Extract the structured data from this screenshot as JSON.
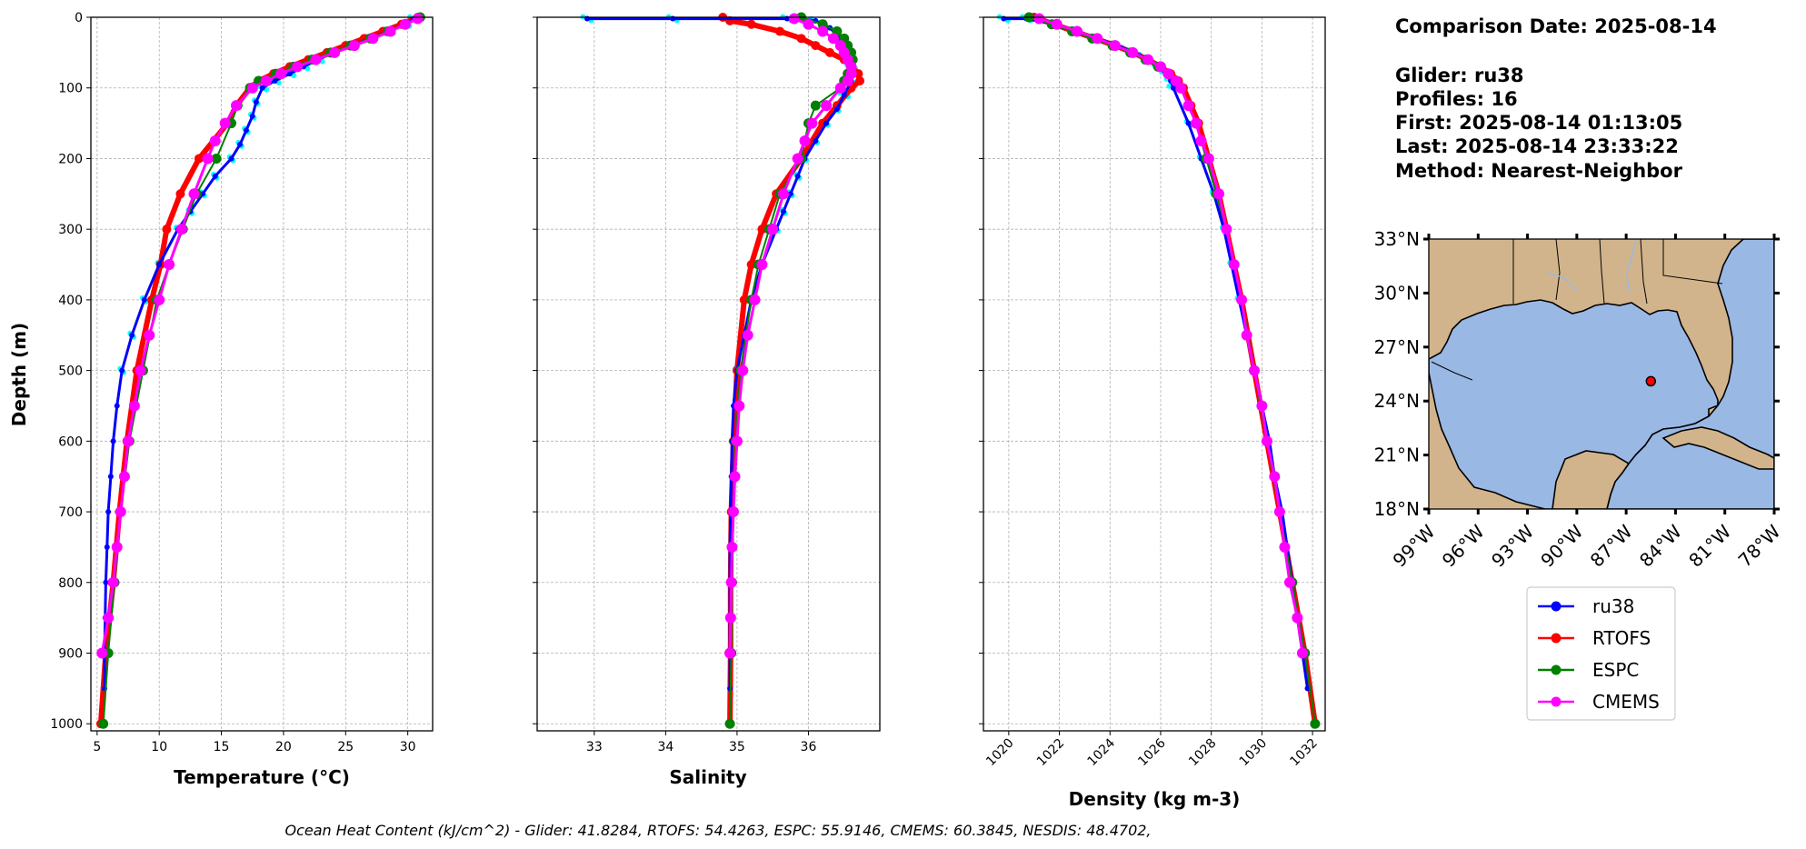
{
  "colors": {
    "glider": "#0000ff",
    "glider_raw": "#00ffff",
    "rtofs": "#ff0000",
    "espc": "#008000",
    "cmems": "#ff00ff",
    "land": "#d2b48c",
    "ocean": "#9ab8e4",
    "grid": "#b0b0b0"
  },
  "chart_data": [
    {
      "type": "line",
      "id": "temperature",
      "xlabel": "Temperature (°C)",
      "ylabel": "Depth (m)",
      "xlim": [
        4.5,
        32.0
      ],
      "ylim": [
        1010,
        0
      ],
      "xticks": [
        5,
        10,
        15,
        20,
        25,
        30
      ],
      "yticks": [
        0,
        100,
        200,
        300,
        400,
        500,
        600,
        700,
        800,
        900,
        1000
      ],
      "grid": true,
      "series": [
        {
          "name": "ru38",
          "depth": [
            2,
            10,
            20,
            30,
            40,
            50,
            60,
            70,
            80,
            90,
            100,
            120,
            140,
            160,
            180,
            200,
            225,
            250,
            275,
            300,
            350,
            400,
            450,
            500,
            550,
            600,
            650,
            700,
            750,
            800,
            850,
            900,
            950
          ],
          "values": [
            30.5,
            29.8,
            28.5,
            27.0,
            25.5,
            24.0,
            22.8,
            21.6,
            20.5,
            19.3,
            18.3,
            17.8,
            17.5,
            17.0,
            16.5,
            15.8,
            14.5,
            13.5,
            12.5,
            11.5,
            10.0,
            8.8,
            7.8,
            7.0,
            6.6,
            6.3,
            6.1,
            5.9,
            5.8,
            5.7,
            5.65,
            5.6,
            5.6
          ]
        },
        {
          "name": "RTOFS",
          "depth": [
            0,
            10,
            20,
            30,
            40,
            50,
            60,
            70,
            80,
            90,
            100,
            125,
            150,
            200,
            250,
            300,
            350,
            400,
            500,
            600,
            700,
            800,
            900,
            1000
          ],
          "values": [
            30.8,
            29.5,
            28.0,
            26.5,
            25.0,
            23.5,
            22.0,
            20.5,
            19.2,
            18.0,
            17.3,
            16.2,
            15.5,
            13.2,
            11.7,
            10.6,
            10.1,
            9.4,
            8.2,
            7.4,
            6.8,
            6.3,
            5.7,
            5.3
          ]
        },
        {
          "name": "ESPC",
          "depth": [
            0,
            10,
            20,
            30,
            40,
            50,
            60,
            70,
            80,
            90,
            100,
            125,
            150,
            200,
            250,
            300,
            350,
            400,
            500,
            600,
            700,
            800,
            900,
            1000
          ],
          "values": [
            31.0,
            29.8,
            28.4,
            27.0,
            25.4,
            23.8,
            22.3,
            20.8,
            19.4,
            18.0,
            17.3,
            16.3,
            15.8,
            14.6,
            13.0,
            11.9,
            10.8,
            9.8,
            8.7,
            7.6,
            6.9,
            6.4,
            5.9,
            5.5
          ]
        },
        {
          "name": "CMEMS",
          "depth": [
            2,
            10,
            20,
            30,
            40,
            50,
            60,
            70,
            80,
            90,
            100,
            125,
            150,
            175,
            200,
            250,
            300,
            350,
            400,
            450,
            500,
            550,
            600,
            650,
            700,
            750,
            800,
            850,
            900
          ],
          "values": [
            30.8,
            29.8,
            28.6,
            27.2,
            25.7,
            24.1,
            22.6,
            21.1,
            19.8,
            18.6,
            17.5,
            16.2,
            15.3,
            14.5,
            13.9,
            12.8,
            11.8,
            10.8,
            10.0,
            9.2,
            8.5,
            8.0,
            7.5,
            7.2,
            6.9,
            6.6,
            6.3,
            5.9,
            5.4
          ]
        }
      ]
    },
    {
      "type": "line",
      "id": "salinity",
      "xlabel": "Salinity",
      "ylabel": "",
      "xlim": [
        32.2,
        37.0
      ],
      "ylim": [
        1010,
        0
      ],
      "xticks": [
        33,
        34,
        35,
        36
      ],
      "yticks": [
        0,
        100,
        200,
        300,
        400,
        500,
        600,
        700,
        800,
        900,
        1000
      ],
      "grid": true,
      "series": [
        {
          "name": "ru38",
          "depth": [
            2,
            2,
            2,
            2,
            5,
            15,
            30,
            50,
            70,
            90,
            110,
            130,
            150,
            175,
            200,
            225,
            250,
            275,
            300,
            350,
            400,
            450,
            500,
            550,
            600,
            650,
            700,
            750,
            800,
            850,
            900,
            950
          ],
          "values": [
            32.9,
            34.1,
            35.7,
            35.9,
            36.1,
            36.3,
            36.45,
            36.55,
            36.6,
            36.6,
            36.5,
            36.4,
            36.25,
            36.1,
            35.95,
            35.85,
            35.75,
            35.65,
            35.55,
            35.35,
            35.2,
            35.1,
            35.0,
            34.95,
            34.93,
            34.92,
            34.91,
            34.9,
            34.9,
            34.9,
            34.9,
            34.9
          ]
        },
        {
          "name": "RTOFS",
          "depth": [
            0,
            5,
            10,
            20,
            30,
            40,
            50,
            60,
            70,
            80,
            90,
            100,
            125,
            150,
            200,
            250,
            300,
            350,
            400,
            500,
            600,
            700,
            800,
            900,
            1000
          ],
          "values": [
            34.8,
            34.9,
            35.2,
            35.6,
            35.9,
            36.1,
            36.3,
            36.5,
            36.6,
            36.7,
            36.72,
            36.6,
            36.4,
            36.2,
            35.9,
            35.55,
            35.35,
            35.2,
            35.1,
            35.0,
            34.95,
            34.92,
            34.91,
            34.91,
            34.9
          ]
        },
        {
          "name": "ESPC",
          "depth": [
            0,
            10,
            20,
            30,
            40,
            50,
            60,
            70,
            80,
            90,
            100,
            125,
            150,
            200,
            250,
            300,
            350,
            400,
            500,
            600,
            700,
            800,
            900,
            1000
          ],
          "values": [
            35.9,
            36.2,
            36.4,
            36.5,
            36.55,
            36.6,
            36.62,
            36.6,
            36.55,
            36.5,
            36.45,
            36.1,
            36.0,
            35.9,
            35.6,
            35.45,
            35.3,
            35.2,
            35.05,
            34.98,
            34.95,
            34.93,
            34.92,
            34.9
          ]
        },
        {
          "name": "CMEMS",
          "depth": [
            2,
            10,
            20,
            30,
            40,
            50,
            60,
            70,
            80,
            90,
            100,
            125,
            150,
            175,
            200,
            250,
            300,
            350,
            400,
            450,
            500,
            550,
            600,
            650,
            700,
            750,
            800,
            850,
            900
          ],
          "values": [
            35.8,
            36.0,
            36.2,
            36.35,
            36.45,
            36.5,
            36.55,
            36.6,
            36.6,
            36.55,
            36.45,
            36.25,
            36.05,
            35.95,
            35.85,
            35.65,
            35.5,
            35.35,
            35.25,
            35.15,
            35.08,
            35.03,
            35.0,
            34.97,
            34.95,
            34.93,
            34.92,
            34.91,
            34.9
          ]
        }
      ]
    },
    {
      "type": "line",
      "id": "density",
      "xlabel": "Density (kg m-3)",
      "ylabel": "",
      "xlim": [
        1019.0,
        1032.5
      ],
      "ylim": [
        1010,
        0
      ],
      "xticks": [
        1020,
        1022,
        1024,
        1026,
        1028,
        1030,
        1032
      ],
      "yticks": [
        0,
        100,
        200,
        300,
        400,
        500,
        600,
        700,
        800,
        900,
        1000
      ],
      "grid": true,
      "series": [
        {
          "name": "ru38",
          "depth": [
            2,
            2,
            10,
            20,
            30,
            40,
            50,
            60,
            70,
            80,
            90,
            100,
            150,
            200,
            250,
            300,
            350,
            400,
            450,
            500,
            550,
            600,
            650,
            700,
            750,
            800,
            850,
            900,
            950
          ],
          "values": [
            1019.8,
            1020.7,
            1021.8,
            1022.7,
            1023.5,
            1024.3,
            1025.0,
            1025.5,
            1025.9,
            1026.2,
            1026.4,
            1026.5,
            1027.1,
            1027.6,
            1028.1,
            1028.5,
            1028.8,
            1029.1,
            1029.4,
            1029.7,
            1030.0,
            1030.3,
            1030.5,
            1030.8,
            1031.0,
            1031.2,
            1031.4,
            1031.6,
            1031.8
          ]
        },
        {
          "name": "RTOFS",
          "depth": [
            0,
            10,
            20,
            30,
            40,
            50,
            60,
            70,
            80,
            90,
            100,
            125,
            150,
            200,
            250,
            300,
            350,
            400,
            500,
            600,
            700,
            800,
            900,
            1000
          ],
          "values": [
            1021.0,
            1021.8,
            1022.6,
            1023.4,
            1024.2,
            1024.9,
            1025.5,
            1026.0,
            1026.4,
            1026.7,
            1026.9,
            1027.2,
            1027.5,
            1027.9,
            1028.3,
            1028.6,
            1028.9,
            1029.2,
            1029.7,
            1030.2,
            1030.7,
            1031.2,
            1031.7,
            1032.1
          ]
        },
        {
          "name": "ESPC",
          "depth": [
            0,
            10,
            20,
            30,
            40,
            50,
            60,
            70,
            80,
            90,
            100,
            125,
            150,
            200,
            250,
            300,
            350,
            400,
            500,
            600,
            700,
            800,
            900,
            1000
          ],
          "values": [
            1020.8,
            1021.7,
            1022.5,
            1023.3,
            1024.1,
            1024.8,
            1025.4,
            1025.9,
            1026.3,
            1026.6,
            1026.8,
            1027.1,
            1027.4,
            1027.8,
            1028.2,
            1028.6,
            1028.9,
            1029.2,
            1029.7,
            1030.2,
            1030.7,
            1031.2,
            1031.7,
            1032.1
          ]
        },
        {
          "name": "CMEMS",
          "depth": [
            2,
            10,
            20,
            30,
            40,
            50,
            60,
            70,
            80,
            90,
            100,
            125,
            150,
            175,
            200,
            250,
            300,
            350,
            400,
            450,
            500,
            550,
            600,
            650,
            700,
            750,
            800,
            850,
            900
          ],
          "values": [
            1021.2,
            1021.9,
            1022.7,
            1023.5,
            1024.2,
            1024.9,
            1025.5,
            1026.0,
            1026.3,
            1026.6,
            1026.8,
            1027.1,
            1027.4,
            1027.6,
            1027.9,
            1028.3,
            1028.6,
            1028.9,
            1029.2,
            1029.4,
            1029.7,
            1030.0,
            1030.2,
            1030.5,
            1030.7,
            1030.9,
            1031.1,
            1031.4,
            1031.6
          ]
        }
      ]
    }
  ],
  "info": {
    "comparison_date": "Comparison Date: 2025-08-14",
    "glider": "Glider: ru38",
    "profiles": "Profiles: 16",
    "first": "First: 2025-08-14 01:13:05",
    "last": "Last: 2025-08-14 23:33:22",
    "method": "Method: Nearest-Neighbor"
  },
  "map": {
    "lat_ticks": [
      "33°N",
      "30°N",
      "27°N",
      "24°N",
      "21°N",
      "18°N"
    ],
    "lon_ticks": [
      "99°W",
      "96°W",
      "93°W",
      "90°W",
      "87°W",
      "84°W",
      "81°W",
      "78°W"
    ],
    "glider_location": {
      "lon": -85.5,
      "lat": 25.1
    }
  },
  "legend": [
    "ru38",
    "RTOFS",
    "ESPC",
    "CMEMS"
  ],
  "footer": "Ocean Heat Content (kJ/cm^2) - Glider: 41.8284,  RTOFS: 54.4263,  ESPC: 55.9146,  CMEMS: 60.3845,  NESDIS: 48.4702,"
}
